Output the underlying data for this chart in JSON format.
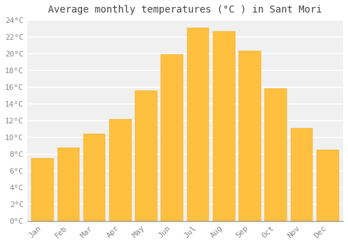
{
  "title": "Average monthly temperatures (°C ) in Sant Mori",
  "months": [
    "Jan",
    "Feb",
    "Mar",
    "Apr",
    "May",
    "Jun",
    "Jul",
    "Aug",
    "Sep",
    "Oct",
    "Nov",
    "Dec"
  ],
  "values": [
    7.5,
    8.7,
    10.4,
    12.2,
    15.6,
    19.9,
    23.1,
    22.7,
    20.3,
    15.8,
    11.1,
    8.5
  ],
  "bar_color_top": "#FFC040",
  "bar_color_bottom": "#F5A800",
  "bar_edge_color": "#E8A000",
  "ylim": [
    0,
    24
  ],
  "ytick_step": 2,
  "background_color": "#ffffff",
  "plot_bg_color": "#f0f0f0",
  "grid_color": "#ffffff",
  "title_fontsize": 10,
  "tick_fontsize": 8,
  "font_family": "monospace",
  "tick_color": "#888888",
  "title_color": "#444444"
}
